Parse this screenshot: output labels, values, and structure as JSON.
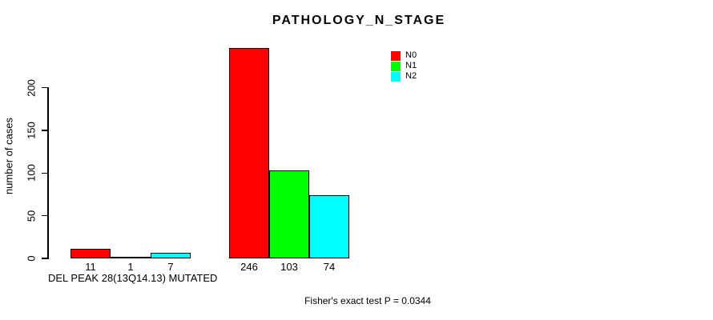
{
  "chart_data": {
    "type": "bar",
    "title": "PATHOLOGY_N_STAGE",
    "ylabel": "number of cases",
    "xlabel": "",
    "ylim": [
      0,
      200
    ],
    "yticks": [
      0,
      50,
      100,
      150,
      200
    ],
    "grid": false,
    "legend_position": "top-right",
    "group_labels": [
      "DEL PEAK 28(13Q14.13) MUTATED",
      ""
    ],
    "series": [
      {
        "name": "N0",
        "color": "#ff0000",
        "values": [
          11,
          246
        ]
      },
      {
        "name": "N1",
        "color": "#00ff00",
        "values": [
          1,
          103
        ]
      },
      {
        "name": "N2",
        "color": "#00ffff",
        "values": [
          7,
          74
        ]
      }
    ],
    "bar_value_labels": [
      [
        11,
        1,
        7
      ],
      [
        246,
        103,
        74
      ]
    ],
    "annotation": "Fisher's exact test P = 0.0344"
  },
  "colors": {
    "background": "#ffffff",
    "bar_border": "#000000",
    "n0": "#ff0000",
    "n1": "#00ff00",
    "n2": "#00ffff"
  }
}
